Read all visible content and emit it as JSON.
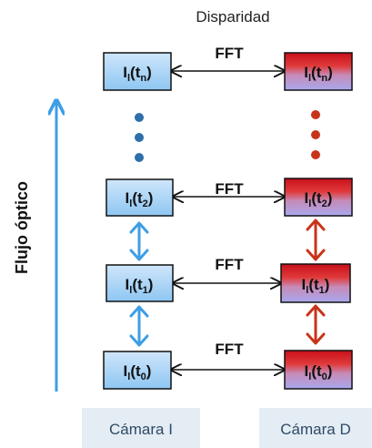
{
  "title": "Disparidad",
  "axis_label": "Flujo óptico",
  "link_label": "FFT",
  "left_column": {
    "nodes": [
      {
        "main": "I",
        "sub_1": "l",
        "mid": "(t",
        "sub_2": "n",
        "end": ")"
      },
      {
        "main": "I",
        "sub_1": "l",
        "mid": "(t",
        "sub_2": "2",
        "end": ")"
      },
      {
        "main": "I",
        "sub_1": "l",
        "mid": "(t",
        "sub_2": "1",
        "end": ")"
      },
      {
        "main": "I",
        "sub_1": "l",
        "mid": "(t",
        "sub_2": "0",
        "end": ")"
      }
    ],
    "camera_label": "Cámara I"
  },
  "right_column": {
    "nodes": [
      {
        "main": "I",
        "sub_1": "l",
        "mid": "(t",
        "sub_2": "n",
        "end": ")"
      },
      {
        "main": "I",
        "sub_1": "l",
        "mid": "(t",
        "sub_2": "2",
        "end": ")"
      },
      {
        "main": "I",
        "sub_1": "l",
        "mid": "(t",
        "sub_2": "1",
        "end": ")"
      },
      {
        "main": "I",
        "sub_1": "l",
        "mid": "(t",
        "sub_2": "0",
        "end": ")"
      }
    ],
    "camera_label": "Cámara D"
  },
  "colors": {
    "left_box_top": "#cfe6fb",
    "left_box_bottom": "#8ec6f2",
    "right_box_top": "#d11a1a",
    "right_box_bottom": "#a7a7ea",
    "blue_accent": "#3d9ee6",
    "dot_blue": "#2f6faa",
    "red_accent": "#c8341a"
  }
}
